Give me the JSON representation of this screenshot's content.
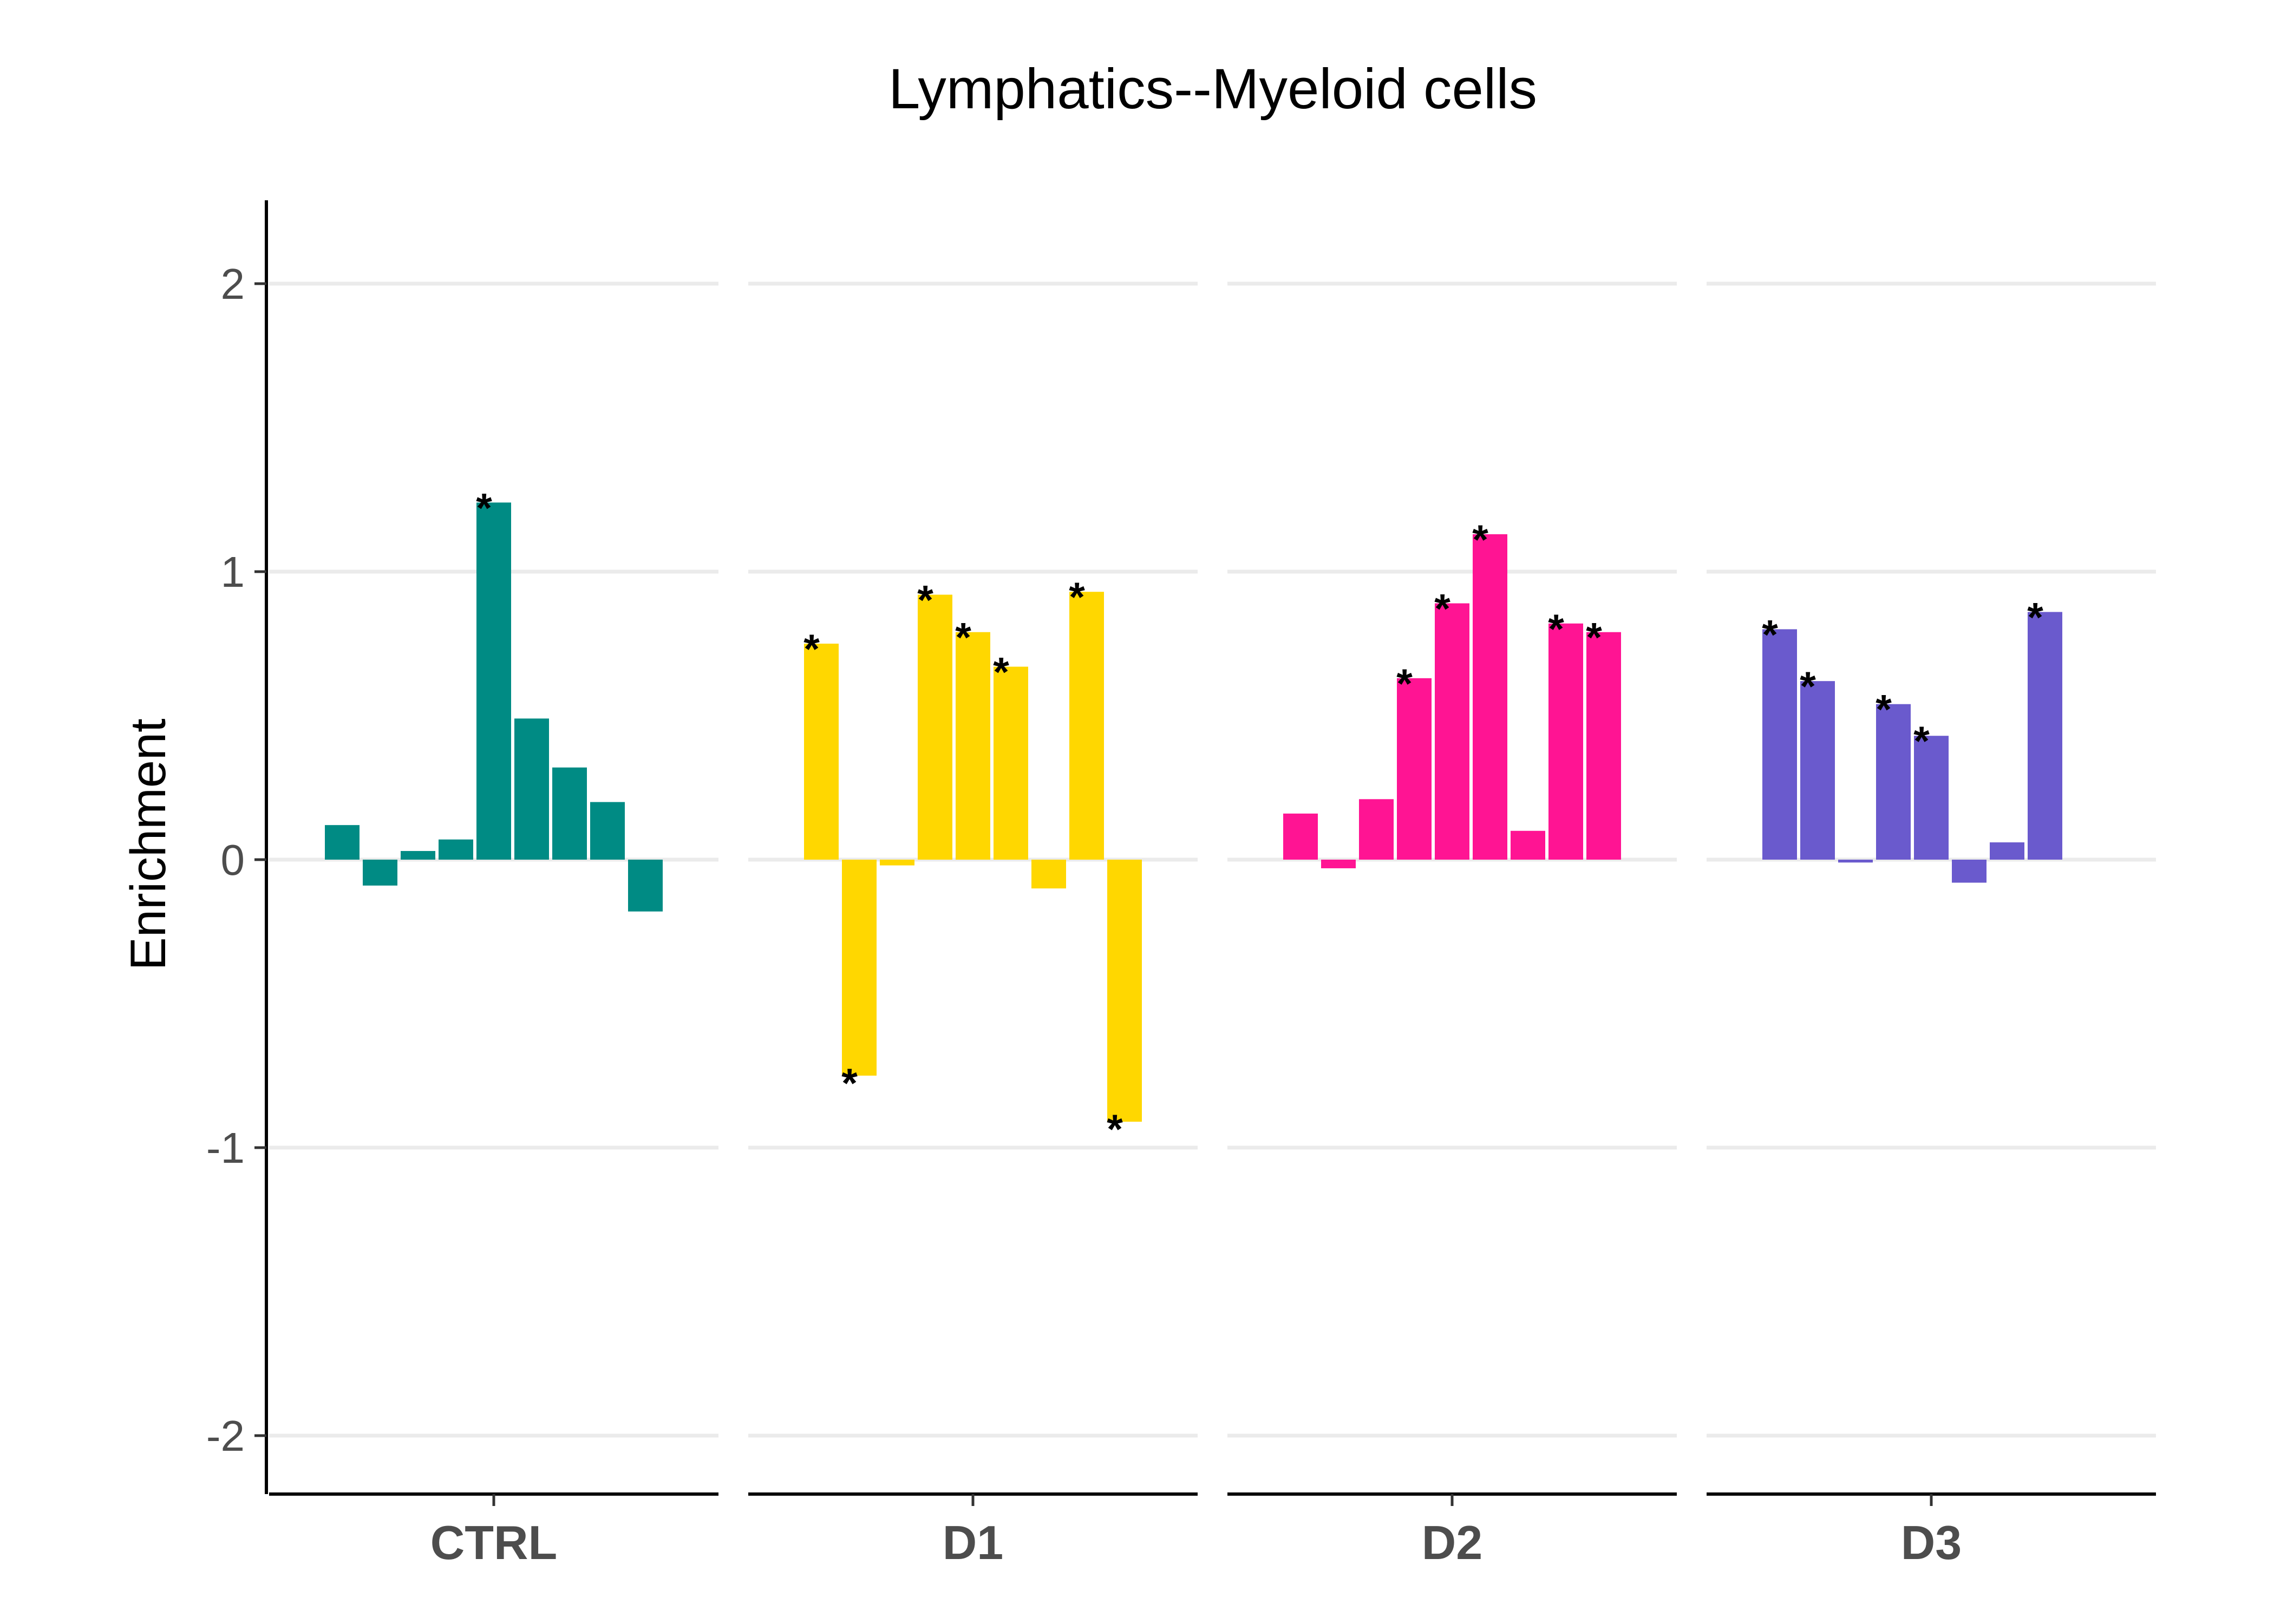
{
  "chart_data": {
    "type": "bar",
    "title": "Lymphatics--Myeloid cells",
    "ylabel": "Enrichment",
    "xlabel": "",
    "ylim": [
      -2.2,
      2.3
    ],
    "yticks": [
      2,
      1,
      0,
      -1,
      -2
    ],
    "ytick_labels": [
      "2",
      "1",
      "0",
      "-1",
      "-2"
    ],
    "grid": "horizontal",
    "legend": "none",
    "significance_marker": "*",
    "panels": [
      {
        "label": "CTRL",
        "color": "#008b84",
        "values": [
          0.12,
          -0.09,
          0.03,
          0.07,
          1.24,
          0.49,
          0.32,
          0.2,
          -0.18
        ],
        "significant": [
          false,
          false,
          false,
          false,
          true,
          false,
          false,
          false,
          false
        ]
      },
      {
        "label": "D1",
        "color": "#ffd700",
        "values": [
          0.75,
          -0.75,
          -0.02,
          0.92,
          0.79,
          0.67,
          -0.1,
          0.93,
          -0.91
        ],
        "significant": [
          true,
          true,
          false,
          true,
          true,
          true,
          false,
          true,
          true
        ]
      },
      {
        "label": "D2",
        "color": "#ff1493",
        "values": [
          0.16,
          -0.03,
          0.21,
          0.63,
          0.89,
          1.13,
          0.1,
          0.82,
          0.79
        ],
        "significant": [
          false,
          false,
          false,
          true,
          true,
          true,
          false,
          true,
          true
        ]
      },
      {
        "label": "D3",
        "color": "#6a5acd",
        "values": [
          0.8,
          0.62,
          -0.01,
          0.54,
          0.43,
          -0.08,
          0.06,
          0.86,
          null
        ],
        "significant": [
          true,
          true,
          false,
          true,
          true,
          false,
          false,
          true,
          false
        ]
      }
    ]
  }
}
